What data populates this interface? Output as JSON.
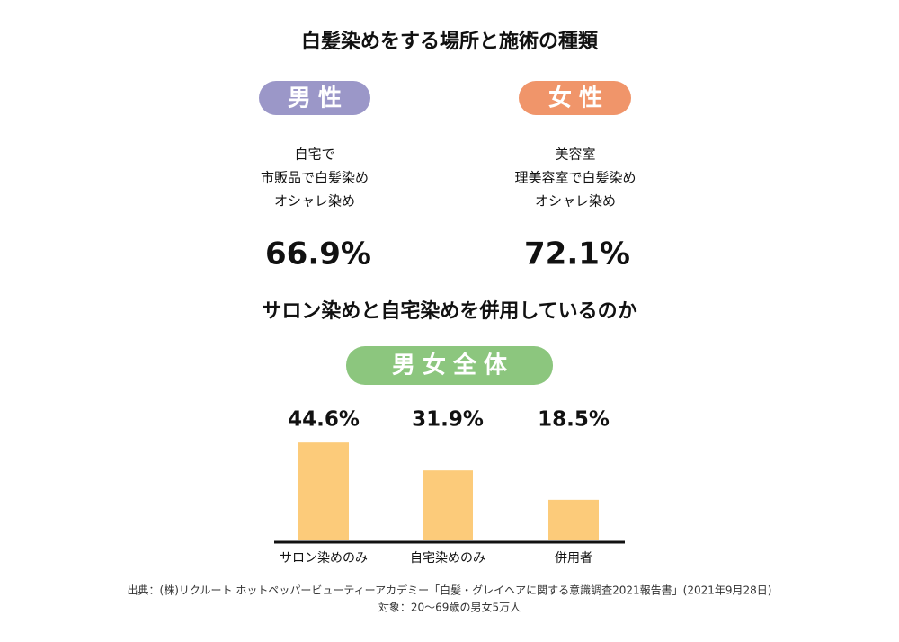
{
  "title": "白髪染めをする場所と施術の種類",
  "men": {
    "label": "男性",
    "lines": [
      "自宅で",
      "市販品で白髪染め",
      "オシャレ染め"
    ],
    "percent": "66.9%"
  },
  "women": {
    "label": "女性",
    "lines": [
      "美容室",
      "理美容室で白髪染め",
      "オシャレ染め"
    ],
    "percent": "72.1%"
  },
  "section_title": "サロン染めと自宅染めを併用しているのか",
  "chart_data": {
    "type": "bar",
    "title": "男女全体",
    "categories": [
      "サロン染めのみ",
      "自宅染めのみ",
      "併用者"
    ],
    "values": [
      44.6,
      31.9,
      18.5
    ],
    "value_labels": [
      "44.6%",
      "31.9%",
      "18.5%"
    ],
    "color": "#fccb7a"
  },
  "footer": [
    "出典：(株)リクルート ホットペッパービューティーアカデミー「白髪・グレイヘアに関する意識調査2021報告書」(2021年9月28日)",
    "対象：20〜69歳の男女5万人"
  ]
}
